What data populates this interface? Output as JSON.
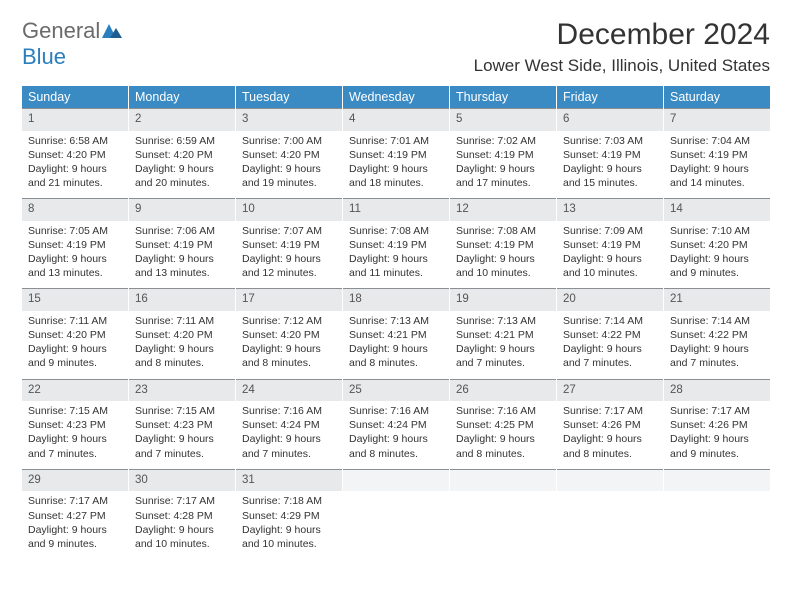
{
  "logo": {
    "part1": "General",
    "part2": "Blue"
  },
  "title": "December 2024",
  "location": "Lower West Side, Illinois, United States",
  "colors": {
    "header_bg": "#3a8ac4",
    "header_fg": "#ffffff",
    "daynum_bg": "#e7e9eb",
    "cell_border_top": "#8a8f94",
    "logo_gray": "#6b6b6b",
    "logo_blue": "#2a7fbf"
  },
  "days_of_week": [
    "Sunday",
    "Monday",
    "Tuesday",
    "Wednesday",
    "Thursday",
    "Friday",
    "Saturday"
  ],
  "weeks": [
    [
      {
        "n": "1",
        "sr": "Sunrise: 6:58 AM",
        "ss": "Sunset: 4:20 PM",
        "dl1": "Daylight: 9 hours",
        "dl2": "and 21 minutes."
      },
      {
        "n": "2",
        "sr": "Sunrise: 6:59 AM",
        "ss": "Sunset: 4:20 PM",
        "dl1": "Daylight: 9 hours",
        "dl2": "and 20 minutes."
      },
      {
        "n": "3",
        "sr": "Sunrise: 7:00 AM",
        "ss": "Sunset: 4:20 PM",
        "dl1": "Daylight: 9 hours",
        "dl2": "and 19 minutes."
      },
      {
        "n": "4",
        "sr": "Sunrise: 7:01 AM",
        "ss": "Sunset: 4:19 PM",
        "dl1": "Daylight: 9 hours",
        "dl2": "and 18 minutes."
      },
      {
        "n": "5",
        "sr": "Sunrise: 7:02 AM",
        "ss": "Sunset: 4:19 PM",
        "dl1": "Daylight: 9 hours",
        "dl2": "and 17 minutes."
      },
      {
        "n": "6",
        "sr": "Sunrise: 7:03 AM",
        "ss": "Sunset: 4:19 PM",
        "dl1": "Daylight: 9 hours",
        "dl2": "and 15 minutes."
      },
      {
        "n": "7",
        "sr": "Sunrise: 7:04 AM",
        "ss": "Sunset: 4:19 PM",
        "dl1": "Daylight: 9 hours",
        "dl2": "and 14 minutes."
      }
    ],
    [
      {
        "n": "8",
        "sr": "Sunrise: 7:05 AM",
        "ss": "Sunset: 4:19 PM",
        "dl1": "Daylight: 9 hours",
        "dl2": "and 13 minutes."
      },
      {
        "n": "9",
        "sr": "Sunrise: 7:06 AM",
        "ss": "Sunset: 4:19 PM",
        "dl1": "Daylight: 9 hours",
        "dl2": "and 13 minutes."
      },
      {
        "n": "10",
        "sr": "Sunrise: 7:07 AM",
        "ss": "Sunset: 4:19 PM",
        "dl1": "Daylight: 9 hours",
        "dl2": "and 12 minutes."
      },
      {
        "n": "11",
        "sr": "Sunrise: 7:08 AM",
        "ss": "Sunset: 4:19 PM",
        "dl1": "Daylight: 9 hours",
        "dl2": "and 11 minutes."
      },
      {
        "n": "12",
        "sr": "Sunrise: 7:08 AM",
        "ss": "Sunset: 4:19 PM",
        "dl1": "Daylight: 9 hours",
        "dl2": "and 10 minutes."
      },
      {
        "n": "13",
        "sr": "Sunrise: 7:09 AM",
        "ss": "Sunset: 4:19 PM",
        "dl1": "Daylight: 9 hours",
        "dl2": "and 10 minutes."
      },
      {
        "n": "14",
        "sr": "Sunrise: 7:10 AM",
        "ss": "Sunset: 4:20 PM",
        "dl1": "Daylight: 9 hours",
        "dl2": "and 9 minutes."
      }
    ],
    [
      {
        "n": "15",
        "sr": "Sunrise: 7:11 AM",
        "ss": "Sunset: 4:20 PM",
        "dl1": "Daylight: 9 hours",
        "dl2": "and 9 minutes."
      },
      {
        "n": "16",
        "sr": "Sunrise: 7:11 AM",
        "ss": "Sunset: 4:20 PM",
        "dl1": "Daylight: 9 hours",
        "dl2": "and 8 minutes."
      },
      {
        "n": "17",
        "sr": "Sunrise: 7:12 AM",
        "ss": "Sunset: 4:20 PM",
        "dl1": "Daylight: 9 hours",
        "dl2": "and 8 minutes."
      },
      {
        "n": "18",
        "sr": "Sunrise: 7:13 AM",
        "ss": "Sunset: 4:21 PM",
        "dl1": "Daylight: 9 hours",
        "dl2": "and 8 minutes."
      },
      {
        "n": "19",
        "sr": "Sunrise: 7:13 AM",
        "ss": "Sunset: 4:21 PM",
        "dl1": "Daylight: 9 hours",
        "dl2": "and 7 minutes."
      },
      {
        "n": "20",
        "sr": "Sunrise: 7:14 AM",
        "ss": "Sunset: 4:22 PM",
        "dl1": "Daylight: 9 hours",
        "dl2": "and 7 minutes."
      },
      {
        "n": "21",
        "sr": "Sunrise: 7:14 AM",
        "ss": "Sunset: 4:22 PM",
        "dl1": "Daylight: 9 hours",
        "dl2": "and 7 minutes."
      }
    ],
    [
      {
        "n": "22",
        "sr": "Sunrise: 7:15 AM",
        "ss": "Sunset: 4:23 PM",
        "dl1": "Daylight: 9 hours",
        "dl2": "and 7 minutes."
      },
      {
        "n": "23",
        "sr": "Sunrise: 7:15 AM",
        "ss": "Sunset: 4:23 PM",
        "dl1": "Daylight: 9 hours",
        "dl2": "and 7 minutes."
      },
      {
        "n": "24",
        "sr": "Sunrise: 7:16 AM",
        "ss": "Sunset: 4:24 PM",
        "dl1": "Daylight: 9 hours",
        "dl2": "and 7 minutes."
      },
      {
        "n": "25",
        "sr": "Sunrise: 7:16 AM",
        "ss": "Sunset: 4:24 PM",
        "dl1": "Daylight: 9 hours",
        "dl2": "and 8 minutes."
      },
      {
        "n": "26",
        "sr": "Sunrise: 7:16 AM",
        "ss": "Sunset: 4:25 PM",
        "dl1": "Daylight: 9 hours",
        "dl2": "and 8 minutes."
      },
      {
        "n": "27",
        "sr": "Sunrise: 7:17 AM",
        "ss": "Sunset: 4:26 PM",
        "dl1": "Daylight: 9 hours",
        "dl2": "and 8 minutes."
      },
      {
        "n": "28",
        "sr": "Sunrise: 7:17 AM",
        "ss": "Sunset: 4:26 PM",
        "dl1": "Daylight: 9 hours",
        "dl2": "and 9 minutes."
      }
    ],
    [
      {
        "n": "29",
        "sr": "Sunrise: 7:17 AM",
        "ss": "Sunset: 4:27 PM",
        "dl1": "Daylight: 9 hours",
        "dl2": "and 9 minutes."
      },
      {
        "n": "30",
        "sr": "Sunrise: 7:17 AM",
        "ss": "Sunset: 4:28 PM",
        "dl1": "Daylight: 9 hours",
        "dl2": "and 10 minutes."
      },
      {
        "n": "31",
        "sr": "Sunrise: 7:18 AM",
        "ss": "Sunset: 4:29 PM",
        "dl1": "Daylight: 9 hours",
        "dl2": "and 10 minutes."
      },
      {
        "empty": true
      },
      {
        "empty": true
      },
      {
        "empty": true
      },
      {
        "empty": true
      }
    ]
  ]
}
